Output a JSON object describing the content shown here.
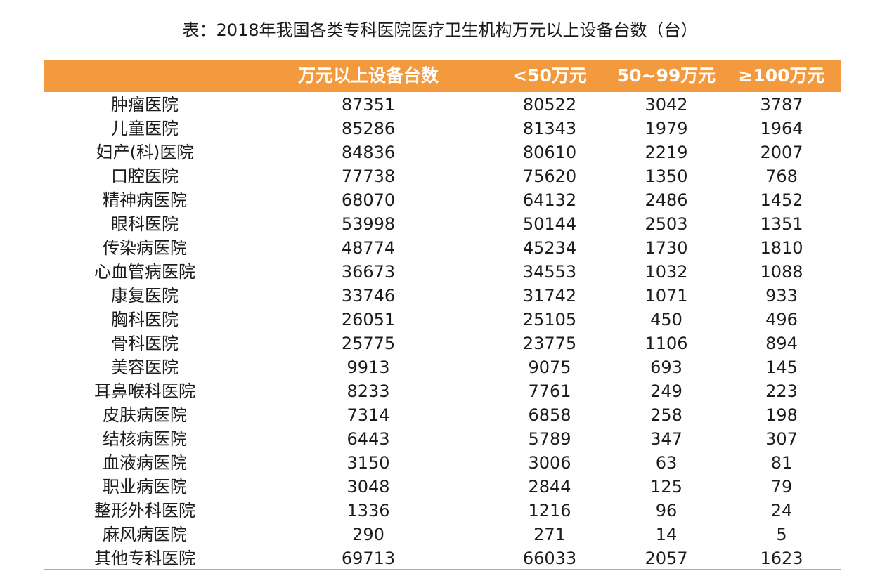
{
  "title": "表：2018年我国各类专科医院医疗卫生机构万元以上设备台数（台）",
  "colors": {
    "header_band": "#f39a3e",
    "header_text": "#ffffff",
    "body_text": "#1c1c1c"
  },
  "table": {
    "headers": {
      "name": "",
      "total": "万元以上设备台数",
      "lt50": "<50万元",
      "mid": "50~99万元",
      "gt100": "≥100万元"
    },
    "rows": [
      {
        "name": "肿瘤医院",
        "total": "87351",
        "lt50": "80522",
        "mid": "3042",
        "gt100": "3787"
      },
      {
        "name": "儿童医院",
        "total": "85286",
        "lt50": "81343",
        "mid": "1979",
        "gt100": "1964"
      },
      {
        "name": "妇产(科)医院",
        "total": "84836",
        "lt50": "80610",
        "mid": "2219",
        "gt100": "2007"
      },
      {
        "name": "口腔医院",
        "total": "77738",
        "lt50": "75620",
        "mid": "1350",
        "gt100": "768"
      },
      {
        "name": "精神病医院",
        "total": "68070",
        "lt50": "64132",
        "mid": "2486",
        "gt100": "1452"
      },
      {
        "name": "眼科医院",
        "total": "53998",
        "lt50": "50144",
        "mid": "2503",
        "gt100": "1351"
      },
      {
        "name": "传染病医院",
        "total": "48774",
        "lt50": "45234",
        "mid": "1730",
        "gt100": "1810"
      },
      {
        "name": "心血管病医院",
        "total": "36673",
        "lt50": "34553",
        "mid": "1032",
        "gt100": "1088"
      },
      {
        "name": "康复医院",
        "total": "33746",
        "lt50": "31742",
        "mid": "1071",
        "gt100": "933"
      },
      {
        "name": "胸科医院",
        "total": "26051",
        "lt50": "25105",
        "mid": "450",
        "gt100": "496"
      },
      {
        "name": "骨科医院",
        "total": "25775",
        "lt50": "23775",
        "mid": "1106",
        "gt100": "894"
      },
      {
        "name": "美容医院",
        "total": "9913",
        "lt50": "9075",
        "mid": "693",
        "gt100": "145"
      },
      {
        "name": "耳鼻喉科医院",
        "total": "8233",
        "lt50": "7761",
        "mid": "249",
        "gt100": "223"
      },
      {
        "name": "皮肤病医院",
        "total": "7314",
        "lt50": "6858",
        "mid": "258",
        "gt100": "198"
      },
      {
        "name": "结核病医院",
        "total": "6443",
        "lt50": "5789",
        "mid": "347",
        "gt100": "307"
      },
      {
        "name": "血液病医院",
        "total": "3150",
        "lt50": "3006",
        "mid": "63",
        "gt100": "81"
      },
      {
        "name": "职业病医院",
        "total": "3048",
        "lt50": "2844",
        "mid": "125",
        "gt100": "79"
      },
      {
        "name": "整形外科医院",
        "total": "1336",
        "lt50": "1216",
        "mid": "96",
        "gt100": "24"
      },
      {
        "name": "麻风病医院",
        "total": "290",
        "lt50": "271",
        "mid": "14",
        "gt100": "5"
      },
      {
        "name": "其他专科医院",
        "total": "69713",
        "lt50": "66033",
        "mid": "2057",
        "gt100": "1623"
      }
    ]
  }
}
